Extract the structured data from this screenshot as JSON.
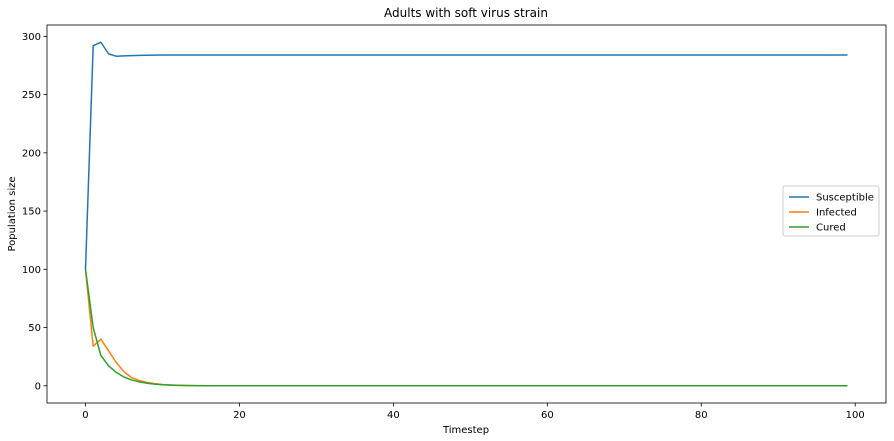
{
  "chart_data": {
    "type": "line",
    "title": "Adults with soft virus strain",
    "xlabel": "Timestep",
    "ylabel": "Population size",
    "xlim": [
      -5.0,
      104.0
    ],
    "ylim": [
      -14.8,
      309.8
    ],
    "xticks": [
      0,
      20,
      40,
      60,
      80,
      100
    ],
    "yticks": [
      0,
      50,
      100,
      150,
      200,
      250,
      300
    ],
    "grid": false,
    "legend_position": "center-right",
    "series": [
      {
        "name": "Susceptible",
        "color": "#1f77b4",
        "x": [
          0,
          1,
          2,
          3,
          4,
          5,
          6,
          7,
          8,
          9,
          10,
          11,
          12,
          13,
          14,
          15,
          16,
          18,
          20,
          25,
          30,
          40,
          50,
          60,
          70,
          80,
          90,
          99
        ],
        "y": [
          100,
          292,
          295,
          285,
          283,
          283.3,
          283.5,
          283.7,
          283.8,
          283.9,
          284,
          284,
          284,
          284,
          284,
          284,
          284,
          284,
          284,
          284,
          284,
          284,
          284,
          284,
          284,
          284,
          284,
          284
        ]
      },
      {
        "name": "Infected",
        "color": "#ff7f0e",
        "x": [
          0,
          1,
          2,
          3,
          4,
          5,
          6,
          7,
          8,
          9,
          10,
          11,
          12,
          13,
          14,
          16,
          18,
          20,
          25,
          30,
          40,
          50,
          60,
          70,
          80,
          90,
          99
        ],
        "y": [
          100,
          34,
          40,
          30,
          20,
          12,
          7,
          4.5,
          2.8,
          1.8,
          1.1,
          0.7,
          0.4,
          0.25,
          0.15,
          0.05,
          0,
          0,
          0,
          0,
          0,
          0,
          0,
          0,
          0,
          0,
          0
        ]
      },
      {
        "name": "Cured",
        "color": "#2ca02c",
        "x": [
          0,
          1,
          2,
          3,
          4,
          5,
          6,
          7,
          8,
          9,
          10,
          11,
          12,
          13,
          14,
          16,
          18,
          20,
          25,
          30,
          40,
          50,
          60,
          70,
          80,
          90,
          99
        ],
        "y": [
          100,
          50,
          26,
          17,
          11.5,
          7.5,
          5,
          3.3,
          2.2,
          1.4,
          0.9,
          0.6,
          0.35,
          0.2,
          0.1,
          0.05,
          0,
          0,
          0,
          0,
          0,
          0,
          0,
          0,
          0,
          0,
          0
        ]
      }
    ]
  }
}
